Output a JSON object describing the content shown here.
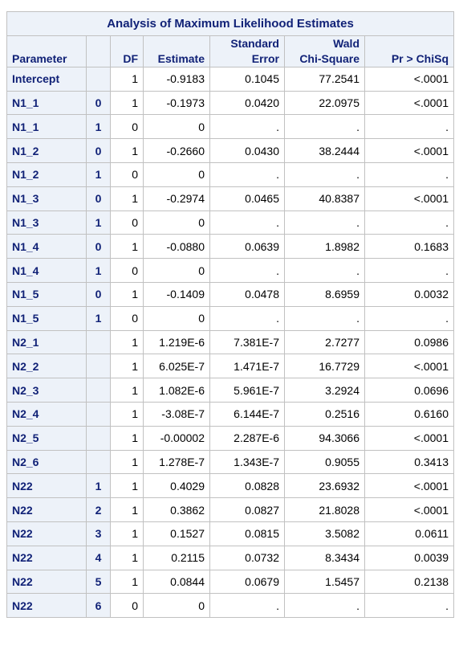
{
  "table": {
    "title": "Analysis of Maximum Likelihood Estimates",
    "headers": {
      "parameter": "Parameter",
      "level": "",
      "df": "DF",
      "estimate": "Estimate",
      "std_error_line1": "Standard",
      "std_error_line2": "Error",
      "wald_line1": "Wald",
      "wald_line2": "Chi-Square",
      "pvalue": "Pr > ChiSq"
    },
    "rows": [
      {
        "param": "Intercept",
        "level": "",
        "df": "1",
        "estimate": "-0.9183",
        "se": "0.1045",
        "chisq": "77.2541",
        "p": "<.0001"
      },
      {
        "param": "N1_1",
        "level": "0",
        "df": "1",
        "estimate": "-0.1973",
        "se": "0.0420",
        "chisq": "22.0975",
        "p": "<.0001"
      },
      {
        "param": "N1_1",
        "level": "1",
        "df": "0",
        "estimate": "0",
        "se": ".",
        "chisq": ".",
        "p": "."
      },
      {
        "param": "N1_2",
        "level": "0",
        "df": "1",
        "estimate": "-0.2660",
        "se": "0.0430",
        "chisq": "38.2444",
        "p": "<.0001"
      },
      {
        "param": "N1_2",
        "level": "1",
        "df": "0",
        "estimate": "0",
        "se": ".",
        "chisq": ".",
        "p": "."
      },
      {
        "param": "N1_3",
        "level": "0",
        "df": "1",
        "estimate": "-0.2974",
        "se": "0.0465",
        "chisq": "40.8387",
        "p": "<.0001"
      },
      {
        "param": "N1_3",
        "level": "1",
        "df": "0",
        "estimate": "0",
        "se": ".",
        "chisq": ".",
        "p": "."
      },
      {
        "param": "N1_4",
        "level": "0",
        "df": "1",
        "estimate": "-0.0880",
        "se": "0.0639",
        "chisq": "1.8982",
        "p": "0.1683"
      },
      {
        "param": "N1_4",
        "level": "1",
        "df": "0",
        "estimate": "0",
        "se": ".",
        "chisq": ".",
        "p": "."
      },
      {
        "param": "N1_5",
        "level": "0",
        "df": "1",
        "estimate": "-0.1409",
        "se": "0.0478",
        "chisq": "8.6959",
        "p": "0.0032"
      },
      {
        "param": "N1_5",
        "level": "1",
        "df": "0",
        "estimate": "0",
        "se": ".",
        "chisq": ".",
        "p": "."
      },
      {
        "param": "N2_1",
        "level": "",
        "df": "1",
        "estimate": "1.219E-6",
        "se": "7.381E-7",
        "chisq": "2.7277",
        "p": "0.0986"
      },
      {
        "param": "N2_2",
        "level": "",
        "df": "1",
        "estimate": "6.025E-7",
        "se": "1.471E-7",
        "chisq": "16.7729",
        "p": "<.0001"
      },
      {
        "param": "N2_3",
        "level": "",
        "df": "1",
        "estimate": "1.082E-6",
        "se": "5.961E-7",
        "chisq": "3.2924",
        "p": "0.0696"
      },
      {
        "param": "N2_4",
        "level": "",
        "df": "1",
        "estimate": "-3.08E-7",
        "se": "6.144E-7",
        "chisq": "0.2516",
        "p": "0.6160"
      },
      {
        "param": "N2_5",
        "level": "",
        "df": "1",
        "estimate": "-0.00002",
        "se": "2.287E-6",
        "chisq": "94.3066",
        "p": "<.0001"
      },
      {
        "param": "N2_6",
        "level": "",
        "df": "1",
        "estimate": "1.278E-7",
        "se": "1.343E-7",
        "chisq": "0.9055",
        "p": "0.3413"
      },
      {
        "param": "N22",
        "level": "1",
        "df": "1",
        "estimate": "0.4029",
        "se": "0.0828",
        "chisq": "23.6932",
        "p": "<.0001"
      },
      {
        "param": "N22",
        "level": "2",
        "df": "1",
        "estimate": "0.3862",
        "se": "0.0827",
        "chisq": "21.8028",
        "p": "<.0001"
      },
      {
        "param": "N22",
        "level": "3",
        "df": "1",
        "estimate": "0.1527",
        "se": "0.0815",
        "chisq": "3.5082",
        "p": "0.0611"
      },
      {
        "param": "N22",
        "level": "4",
        "df": "1",
        "estimate": "0.2115",
        "se": "0.0732",
        "chisq": "8.3434",
        "p": "0.0039"
      },
      {
        "param": "N22",
        "level": "5",
        "df": "1",
        "estimate": "0.0844",
        "se": "0.0679",
        "chisq": "1.5457",
        "p": "0.2138"
      },
      {
        "param": "N22",
        "level": "6",
        "df": "0",
        "estimate": "0",
        "se": ".",
        "chisq": ".",
        "p": "."
      }
    ]
  },
  "colors": {
    "header_bg": "#edf2f9",
    "header_text": "#112277",
    "grid": "#c1c1c1",
    "body_text": "#000000"
  }
}
